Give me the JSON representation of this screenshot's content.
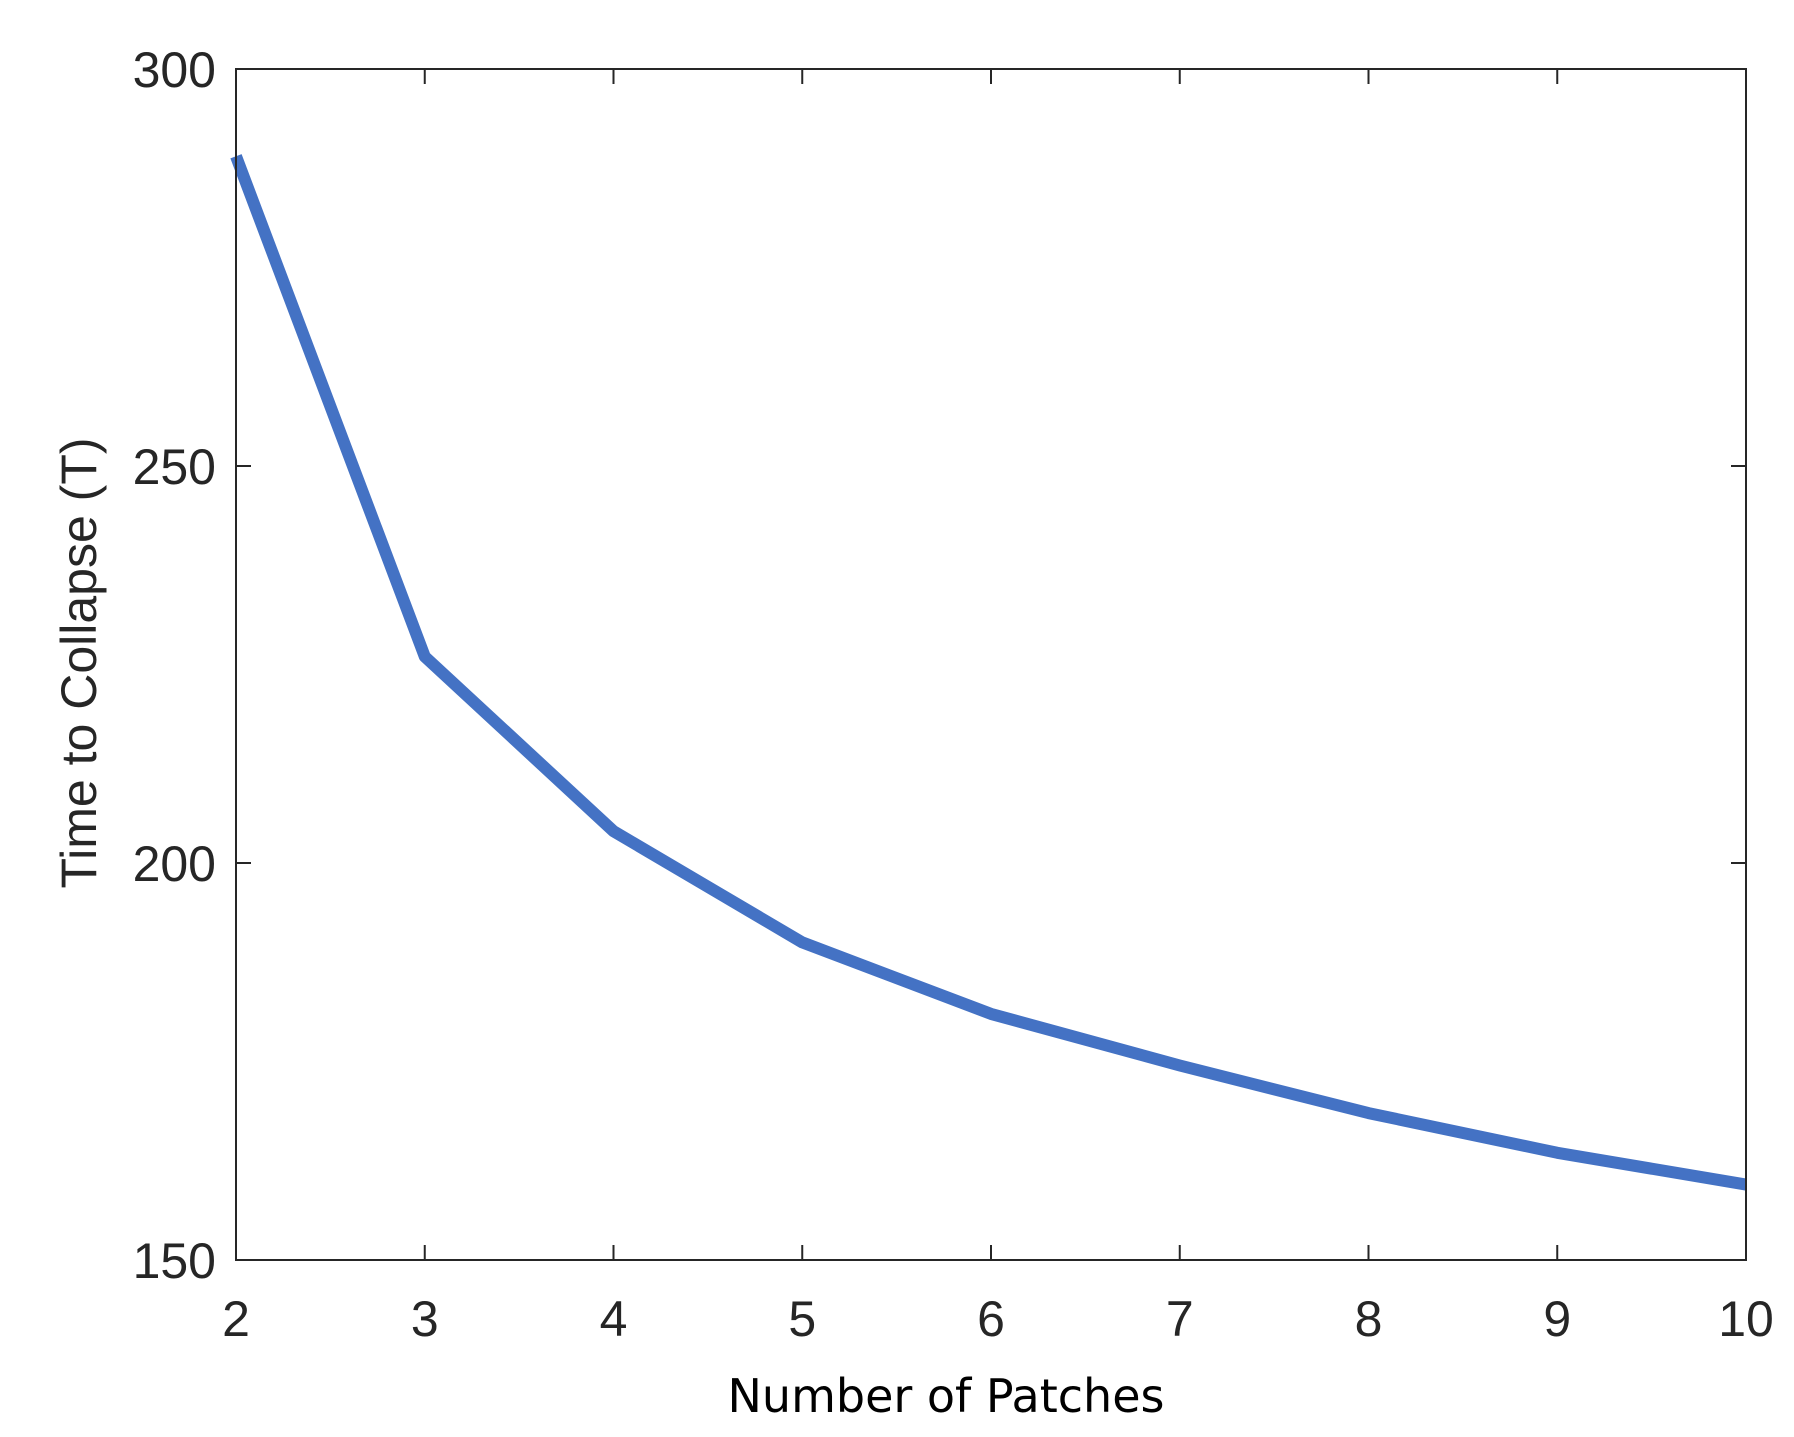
{
  "chart_data": {
    "type": "line",
    "title": "",
    "xlabel": "Number of Patches",
    "ylabel": "Time to Collapse (T)",
    "xlim": [
      2,
      10
    ],
    "ylim": [
      150,
      300
    ],
    "xticks": [
      "2",
      "3",
      "4",
      "5",
      "6",
      "7",
      "8",
      "9",
      "10"
    ],
    "yticks": [
      "150",
      "200",
      "250",
      "300"
    ],
    "grid": false,
    "legend": "none",
    "series": [
      {
        "color": "#4472c4",
        "x": [
          2,
          3,
          4,
          5,
          6,
          7,
          8,
          9,
          10
        ],
        "y": [
          289,
          226,
          204,
          190,
          181,
          174.5,
          168.5,
          163.5,
          159.5
        ]
      }
    ]
  }
}
